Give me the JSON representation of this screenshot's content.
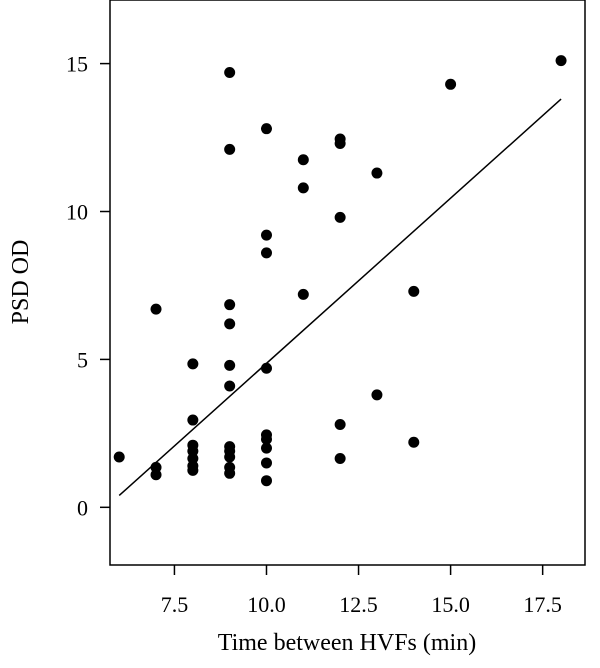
{
  "chart_data": {
    "type": "scatter",
    "title": "",
    "xlabel": "Time between HVFs (min)",
    "ylabel": "PSD OD",
    "xlim": [
      5.75,
      18.65
    ],
    "ylim": [
      -1.95,
      17.15
    ],
    "x_ticks": [
      7.5,
      10.0,
      12.5,
      15.0,
      17.5
    ],
    "x_tick_labels": [
      "7.5",
      "10.0",
      "12.5",
      "15.0",
      "17.5"
    ],
    "y_ticks": [
      0,
      5,
      10,
      15
    ],
    "y_tick_labels": [
      "0",
      "5",
      "10",
      "15"
    ],
    "grid": false,
    "legend": "none",
    "point_color": "#000000",
    "line_color": "#000000",
    "points": [
      {
        "x": 6,
        "y": 1.7
      },
      {
        "x": 7,
        "y": 6.7
      },
      {
        "x": 7,
        "y": 1.35
      },
      {
        "x": 7,
        "y": 1.1
      },
      {
        "x": 8,
        "y": 4.85
      },
      {
        "x": 8,
        "y": 2.95
      },
      {
        "x": 8,
        "y": 2.1
      },
      {
        "x": 8,
        "y": 1.9
      },
      {
        "x": 8,
        "y": 1.65
      },
      {
        "x": 8,
        "y": 1.4
      },
      {
        "x": 8,
        "y": 1.25
      },
      {
        "x": 9,
        "y": 14.7
      },
      {
        "x": 9,
        "y": 12.1
      },
      {
        "x": 9,
        "y": 6.85
      },
      {
        "x": 9,
        "y": 6.2
      },
      {
        "x": 9,
        "y": 4.8
      },
      {
        "x": 9,
        "y": 4.1
      },
      {
        "x": 9,
        "y": 2.05
      },
      {
        "x": 9,
        "y": 1.9
      },
      {
        "x": 9,
        "y": 1.7
      },
      {
        "x": 9,
        "y": 1.35
      },
      {
        "x": 9,
        "y": 1.15
      },
      {
        "x": 10,
        "y": 12.8
      },
      {
        "x": 10,
        "y": 9.2
      },
      {
        "x": 10,
        "y": 8.6
      },
      {
        "x": 10,
        "y": 4.7
      },
      {
        "x": 10,
        "y": 2.45
      },
      {
        "x": 10,
        "y": 2.3
      },
      {
        "x": 10,
        "y": 2.0
      },
      {
        "x": 10,
        "y": 1.5
      },
      {
        "x": 10,
        "y": 0.9
      },
      {
        "x": 11,
        "y": 11.75
      },
      {
        "x": 11,
        "y": 10.8
      },
      {
        "x": 11,
        "y": 7.2
      },
      {
        "x": 12,
        "y": 12.45
      },
      {
        "x": 12,
        "y": 12.3
      },
      {
        "x": 12,
        "y": 9.8
      },
      {
        "x": 12,
        "y": 2.8
      },
      {
        "x": 12,
        "y": 1.65
      },
      {
        "x": 13,
        "y": 11.3
      },
      {
        "x": 13,
        "y": 3.8
      },
      {
        "x": 14,
        "y": 7.3
      },
      {
        "x": 14,
        "y": 2.2
      },
      {
        "x": 15,
        "y": 14.3
      },
      {
        "x": 18,
        "y": 15.1
      }
    ],
    "regression_line": {
      "x": [
        6,
        18
      ],
      "y": [
        0.4,
        13.8
      ]
    }
  }
}
